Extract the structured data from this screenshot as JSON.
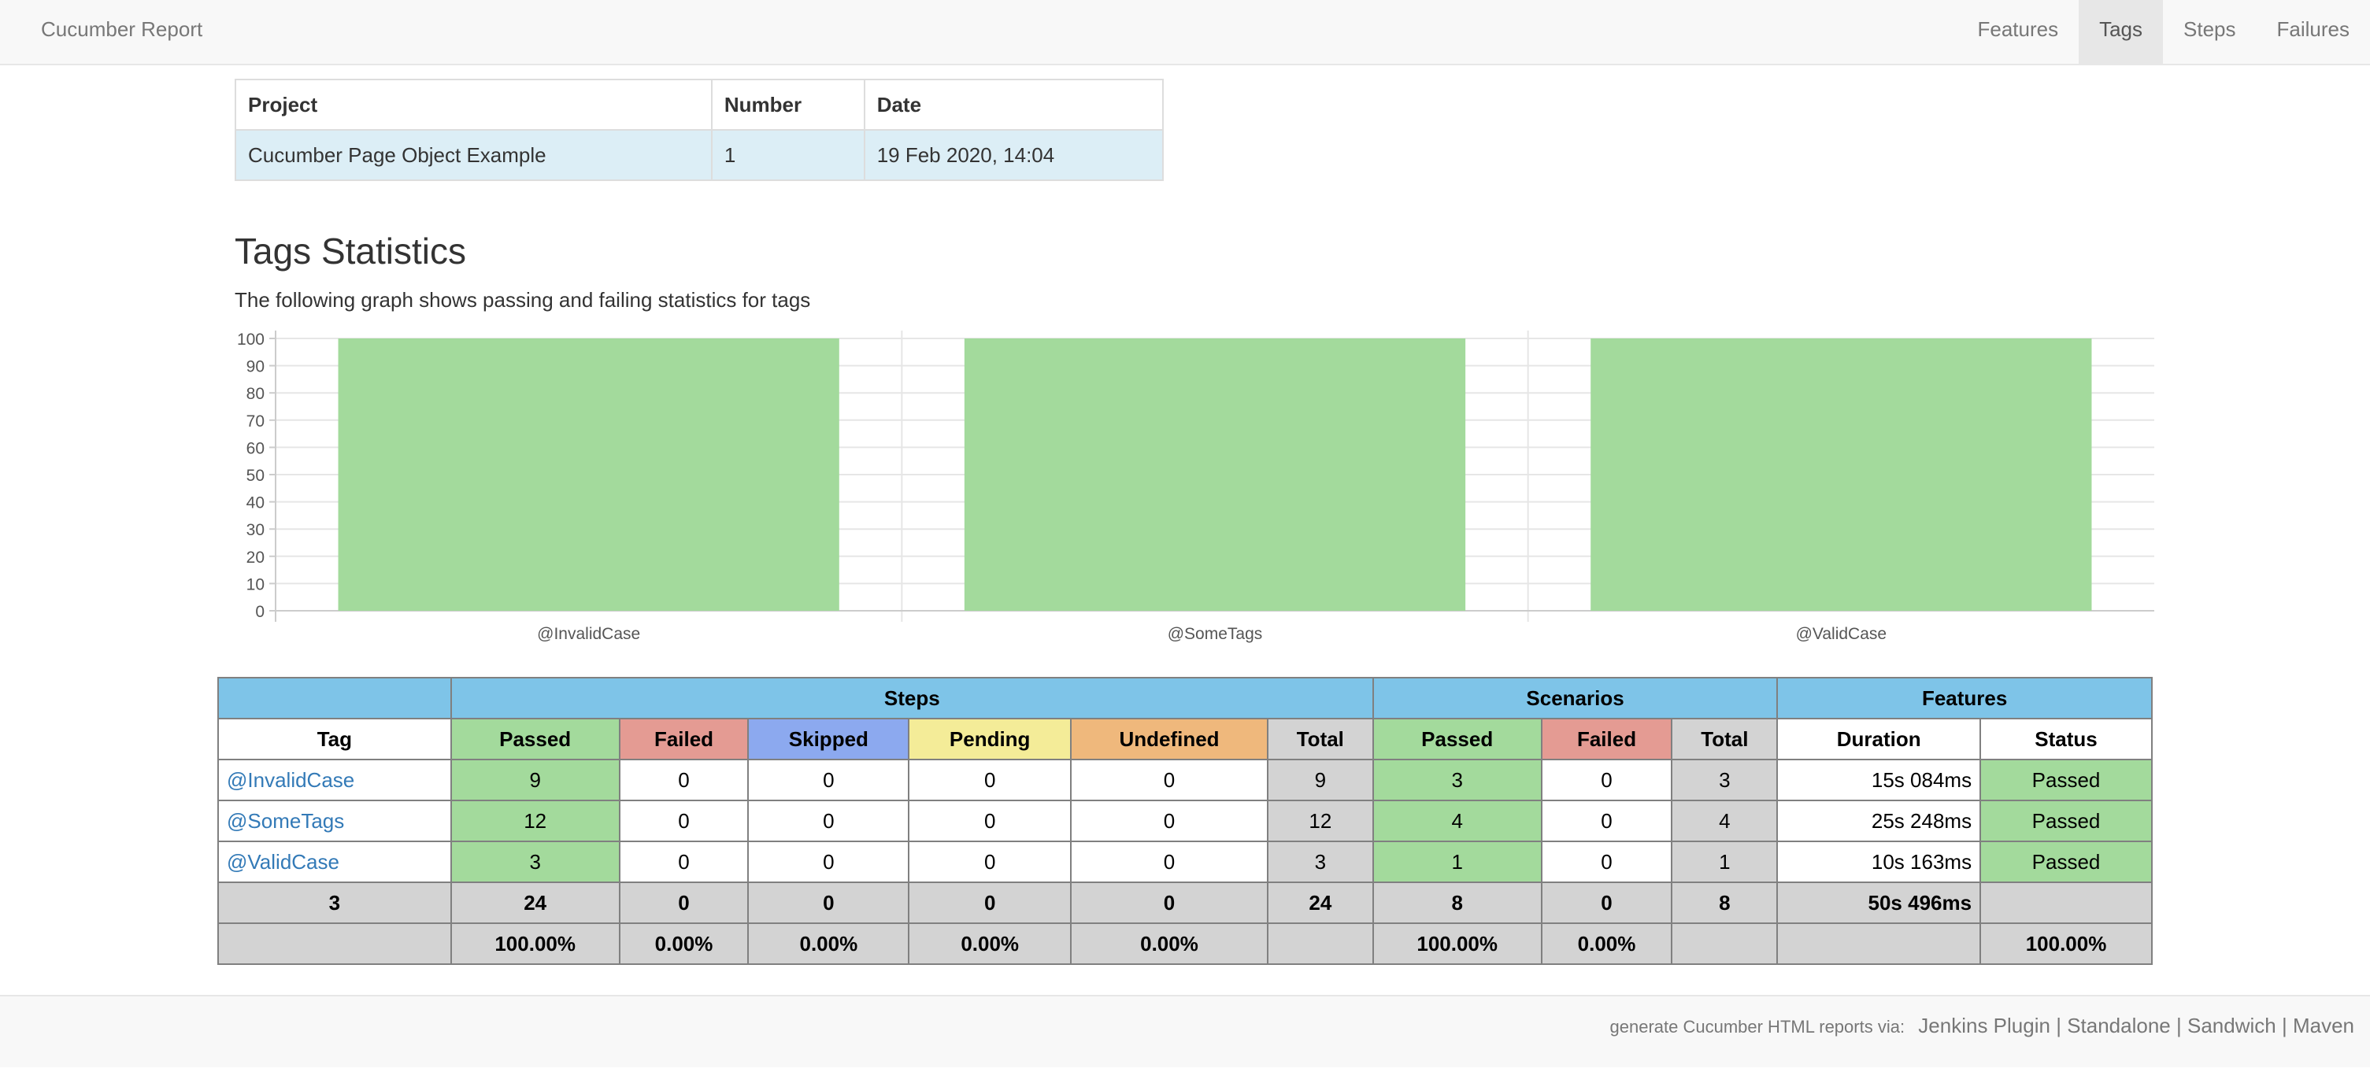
{
  "navbar": {
    "brand": "Cucumber Report",
    "items": [
      {
        "label": "Features",
        "active": false
      },
      {
        "label": "Tags",
        "active": true
      },
      {
        "label": "Steps",
        "active": false
      },
      {
        "label": "Failures",
        "active": false
      }
    ]
  },
  "info_table": {
    "headers": [
      "Project",
      "Number",
      "Date"
    ],
    "row": [
      "Cucumber Page Object Example",
      "1",
      "19 Feb 2020, 14:04"
    ]
  },
  "stats": {
    "title": "Tags Statistics",
    "description": "The following graph shows passing and failing statistics for tags"
  },
  "chart_data": {
    "type": "bar",
    "stacked": true,
    "categories": [
      "@InvalidCase",
      "@SomeTags",
      "@ValidCase"
    ],
    "series": [
      {
        "values": [
          100,
          100,
          100
        ],
        "color": "#a3da9c"
      }
    ],
    "yticks": [
      "0",
      "10",
      "20",
      "30",
      "40",
      "50",
      "60",
      "70",
      "80",
      "90",
      "100"
    ],
    "ylim": [
      0,
      100
    ],
    "grid": true,
    "title": "",
    "xlabel": "",
    "ylabel": ""
  },
  "table": {
    "group_headers": [
      "Steps",
      "Scenarios",
      "Features"
    ],
    "columns": [
      "Tag",
      "Passed",
      "Failed",
      "Skipped",
      "Pending",
      "Undefined",
      "Total",
      "Passed",
      "Failed",
      "Total",
      "Duration",
      "Status"
    ],
    "rows": [
      {
        "tag": "@InvalidCase",
        "steps_passed": "9",
        "steps_failed": "0",
        "steps_skipped": "0",
        "steps_pending": "0",
        "steps_undefined": "0",
        "steps_total": "9",
        "sc_passed": "3",
        "sc_failed": "0",
        "sc_total": "3",
        "duration": "15s 084ms",
        "status": "Passed"
      },
      {
        "tag": "@SomeTags",
        "steps_passed": "12",
        "steps_failed": "0",
        "steps_skipped": "0",
        "steps_pending": "0",
        "steps_undefined": "0",
        "steps_total": "12",
        "sc_passed": "4",
        "sc_failed": "0",
        "sc_total": "4",
        "duration": "25s 248ms",
        "status": "Passed"
      },
      {
        "tag": "@ValidCase",
        "steps_passed": "3",
        "steps_failed": "0",
        "steps_skipped": "0",
        "steps_pending": "0",
        "steps_undefined": "0",
        "steps_total": "3",
        "sc_passed": "1",
        "sc_failed": "0",
        "sc_total": "1",
        "duration": "10s 163ms",
        "status": "Passed"
      }
    ],
    "totals": {
      "tag": "3",
      "steps_passed": "24",
      "steps_failed": "0",
      "steps_skipped": "0",
      "steps_pending": "0",
      "steps_undefined": "0",
      "steps_total": "24",
      "sc_passed": "8",
      "sc_failed": "0",
      "sc_total": "8",
      "duration": "50s 496ms",
      "status": ""
    },
    "percentages": {
      "tag": "",
      "steps_passed": "100.00%",
      "steps_failed": "0.00%",
      "steps_skipped": "0.00%",
      "steps_pending": "0.00%",
      "steps_undefined": "0.00%",
      "steps_total": "",
      "sc_passed": "100.00%",
      "sc_failed": "0.00%",
      "sc_total": "",
      "duration": "",
      "status": "100.00%"
    }
  },
  "footer": {
    "label": "generate Cucumber HTML reports via:",
    "links": [
      "Jenkins Plugin",
      "Standalone",
      "Sandwich",
      "Maven"
    ],
    "separator": "|"
  }
}
